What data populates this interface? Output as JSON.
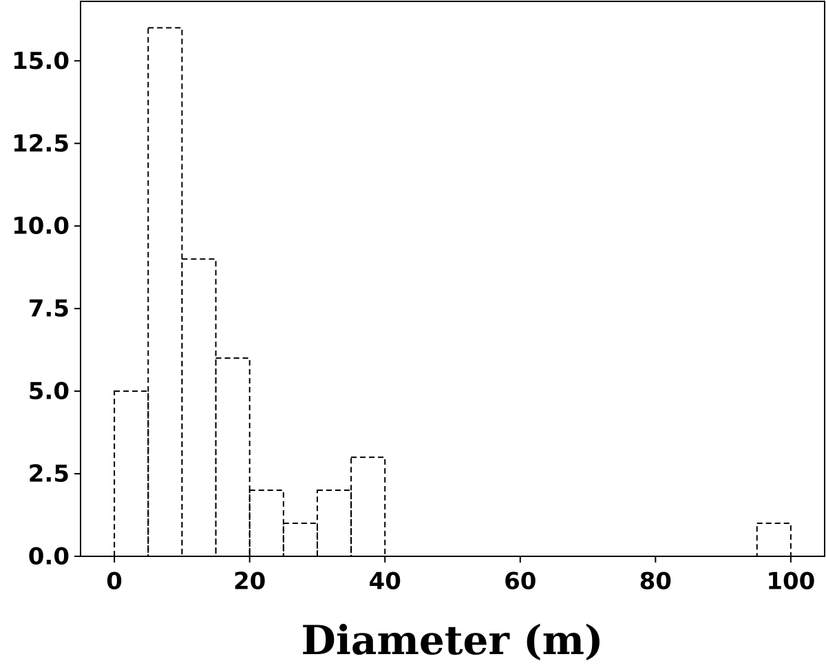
{
  "chart_data": {
    "type": "histogram",
    "x_label": "Diameter (m)",
    "bins": [
      0,
      5,
      10,
      15,
      20,
      25,
      30,
      35,
      40,
      45,
      50,
      55,
      60,
      65,
      70,
      75,
      80,
      85,
      90,
      95,
      100
    ],
    "values": [
      5,
      16,
      9,
      6,
      2,
      1,
      2,
      3,
      0,
      0,
      0,
      0,
      0,
      0,
      0,
      0,
      0,
      0,
      0,
      1
    ],
    "color": "#000000",
    "xlim": [
      -5,
      105
    ],
    "xticks": [
      0,
      20,
      40,
      60,
      80,
      100
    ],
    "ylim": [
      0,
      16.8
    ],
    "yticks": [
      {
        "value": 0,
        "label": "0.0"
      },
      2.5,
      {
        "value": 5,
        "label": "5.0"
      },
      7.5,
      {
        "value": 10,
        "label": "10.0"
      },
      12.5,
      {
        "value": 15,
        "label": "15.0"
      }
    ]
  }
}
